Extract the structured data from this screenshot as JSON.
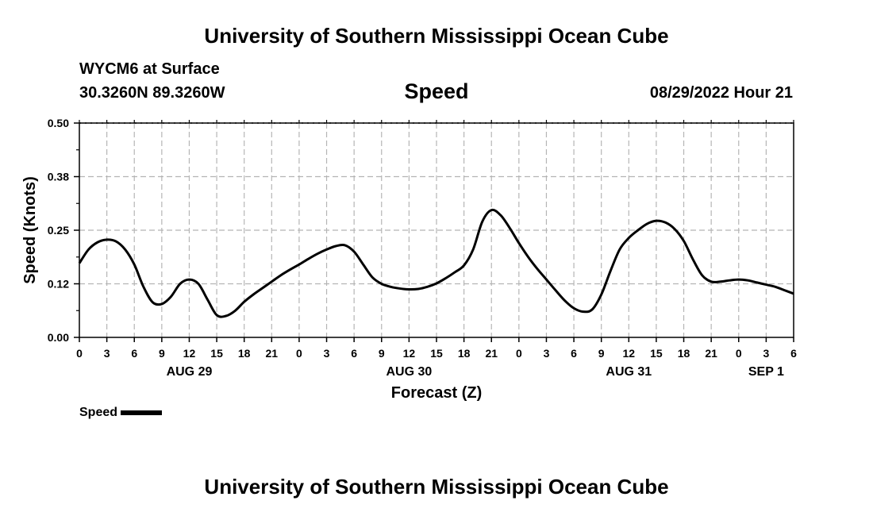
{
  "header": {
    "title": "University of Southern Mississippi Ocean Cube",
    "station": "WYCM6 at Surface",
    "coords": "30.3260N  89.3260W",
    "date_hour": "08/29/2022 Hour 21",
    "footer_title": "University of Southern Mississippi Ocean Cube"
  },
  "legend": {
    "label": "Speed"
  },
  "chart_data": {
    "type": "line",
    "title": "Speed",
    "xlabel": "Forecast (Z)",
    "ylabel": "Speed (Knots)",
    "x_unit": "forecast hour (Z), starting AUG 29 00Z",
    "xlim": [
      0,
      78
    ],
    "ylim": [
      0.0,
      0.5
    ],
    "y_ticks": [
      "0.00",
      "0.12",
      "0.25",
      "0.38",
      "0.50"
    ],
    "x_tick_labels": [
      "0",
      "3",
      "6",
      "9",
      "12",
      "15",
      "18",
      "21",
      "0",
      "3",
      "6",
      "9",
      "12",
      "15",
      "18",
      "21",
      "0",
      "3",
      "6",
      "9",
      "12",
      "15",
      "18",
      "21",
      "0",
      "3",
      "6"
    ],
    "day_labels": [
      {
        "label": "AUG 29",
        "hour": 12
      },
      {
        "label": "AUG 30",
        "hour": 36
      },
      {
        "label": "AUG 31",
        "hour": 60
      },
      {
        "label": "SEP 1",
        "hour": 75
      }
    ],
    "grid": true,
    "legend_position": "bottom-left",
    "series": [
      {
        "name": "Speed",
        "color": "#000000",
        "x": [
          0,
          1,
          2,
          3,
          4,
          5,
          6,
          7,
          8,
          9,
          10,
          11,
          12,
          13,
          14,
          15,
          16,
          17,
          18,
          19,
          20,
          21,
          22,
          23,
          24,
          25,
          26,
          27,
          28,
          29,
          30,
          31,
          32,
          33,
          34,
          35,
          36,
          37,
          38,
          39,
          40,
          41,
          42,
          43,
          44,
          45,
          46,
          47,
          48,
          49,
          50,
          51,
          52,
          53,
          54,
          55,
          56,
          57,
          58,
          59,
          60,
          61,
          62,
          63,
          64,
          65,
          66,
          67,
          68,
          69,
          70,
          71,
          72,
          73,
          74,
          75,
          76,
          77,
          78
        ],
        "y": [
          0.173,
          0.205,
          0.222,
          0.228,
          0.224,
          0.205,
          0.17,
          0.118,
          0.082,
          0.078,
          0.095,
          0.125,
          0.135,
          0.125,
          0.088,
          0.052,
          0.05,
          0.062,
          0.083,
          0.1,
          0.115,
          0.13,
          0.145,
          0.158,
          0.17,
          0.183,
          0.195,
          0.205,
          0.213,
          0.215,
          0.2,
          0.17,
          0.14,
          0.125,
          0.118,
          0.114,
          0.112,
          0.113,
          0.118,
          0.126,
          0.138,
          0.152,
          0.168,
          0.205,
          0.27,
          0.297,
          0.285,
          0.255,
          0.22,
          0.188,
          0.16,
          0.135,
          0.11,
          0.086,
          0.068,
          0.06,
          0.065,
          0.1,
          0.155,
          0.205,
          0.232,
          0.25,
          0.265,
          0.272,
          0.268,
          0.253,
          0.225,
          0.182,
          0.145,
          0.13,
          0.13,
          0.133,
          0.135,
          0.133,
          0.128,
          0.123,
          0.118,
          0.11,
          0.102
        ]
      }
    ]
  }
}
